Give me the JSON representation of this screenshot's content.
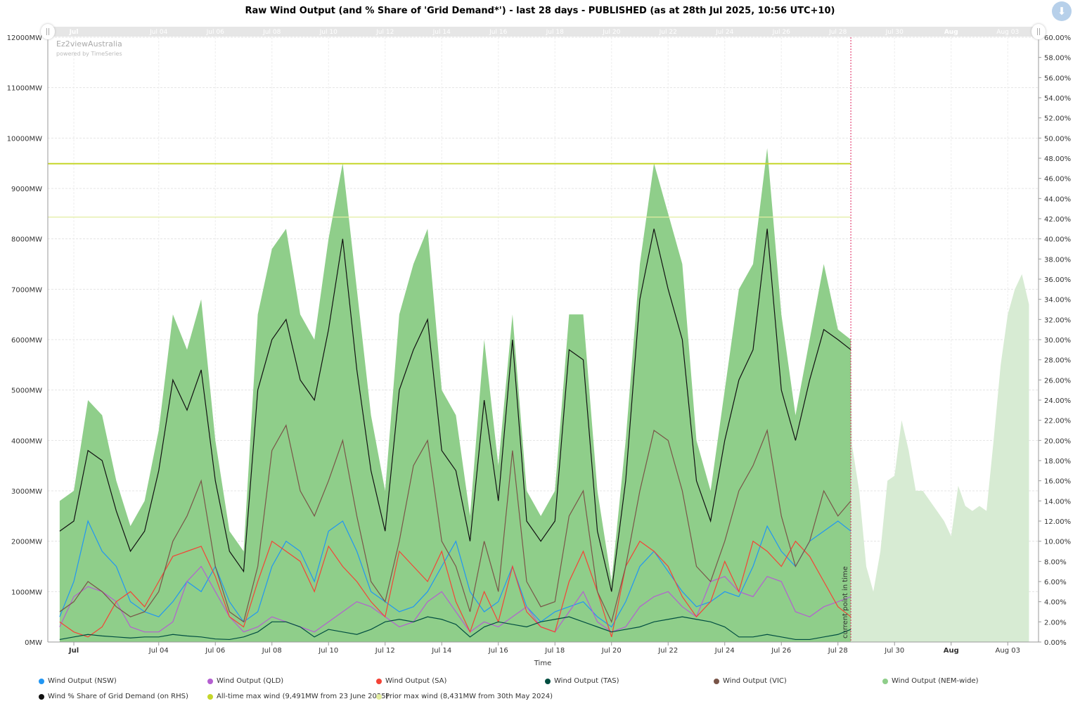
{
  "chart_data": {
    "type": "area",
    "title": "Raw Wind Output (and % Share of 'Grid Demand*') - last 28 days - PUBLISHED (as at 28th Jul 2025, 10:56 UTC+10)",
    "xlabel": "Time",
    "ylabel_left_unit": "MW",
    "ylabel_right_unit": "%",
    "ylim_left": [
      0,
      12000
    ],
    "ylim_right": [
      0,
      60
    ],
    "xlim": [
      "Jun 30 02:00",
      "Aug 04 02:00"
    ],
    "x_ticks": [
      "Jul",
      "Jul 04",
      "Jul 06",
      "Jul 08",
      "Jul 10",
      "Jul 12",
      "Jul 14",
      "Jul 16",
      "Jul 18",
      "Jul 20",
      "Jul 22",
      "Jul 24",
      "Jul 26",
      "Jul 28",
      "Jul 30",
      "Aug",
      "Aug 03"
    ],
    "x_tick_times": [
      "Jul 01 00:00",
      "Jul 04 00:00",
      "Jul 06 00:00",
      "Jul 08 00:00",
      "Jul 10 00:00",
      "Jul 12 00:00",
      "Jul 14 00:00",
      "Jul 16 00:00",
      "Jul 18 00:00",
      "Jul 20 00:00",
      "Jul 22 00:00",
      "Jul 24 00:00",
      "Jul 26 00:00",
      "Jul 28 00:00",
      "Jul 30 00:00",
      "Aug 01 00:00",
      "Aug 03 00:00"
    ],
    "grid": true,
    "legend_position": "bottom",
    "current_time": "Jul 28 10:56",
    "current_time_label": "current point in time",
    "x": [
      "Jun 30 12:00",
      "Jul 01 00:00",
      "Jul 01 12:00",
      "Jul 02 00:00",
      "Jul 02 12:00",
      "Jul 03 00:00",
      "Jul 03 12:00",
      "Jul 04 00:00",
      "Jul 04 12:00",
      "Jul 05 00:00",
      "Jul 05 12:00",
      "Jul 06 00:00",
      "Jul 06 12:00",
      "Jul 07 00:00",
      "Jul 07 12:00",
      "Jul 08 00:00",
      "Jul 08 12:00",
      "Jul 09 00:00",
      "Jul 09 12:00",
      "Jul 10 00:00",
      "Jul 10 12:00",
      "Jul 11 00:00",
      "Jul 11 12:00",
      "Jul 12 00:00",
      "Jul 12 12:00",
      "Jul 13 00:00",
      "Jul 13 12:00",
      "Jul 14 00:00",
      "Jul 14 12:00",
      "Jul 15 00:00",
      "Jul 15 12:00",
      "Jul 16 00:00",
      "Jul 16 12:00",
      "Jul 17 00:00",
      "Jul 17 12:00",
      "Jul 18 00:00",
      "Jul 18 12:00",
      "Jul 19 00:00",
      "Jul 19 12:00",
      "Jul 20 00:00",
      "Jul 20 12:00",
      "Jul 21 00:00",
      "Jul 21 12:00",
      "Jul 22 00:00",
      "Jul 22 12:00",
      "Jul 23 00:00",
      "Jul 23 12:00",
      "Jul 24 00:00",
      "Jul 24 12:00",
      "Jul 25 00:00",
      "Jul 25 12:00",
      "Jul 26 00:00",
      "Jul 26 12:00",
      "Jul 27 00:00",
      "Jul 27 12:00",
      "Jul 28 00:00",
      "Jul 28 10:56"
    ],
    "series": [
      {
        "name": "Wind Output (NEM-wide)",
        "color": "#8fce8a",
        "kind": "area",
        "axis": "left",
        "values": [
          2800,
          3000,
          4800,
          4500,
          3200,
          2300,
          2800,
          4200,
          6500,
          5800,
          6800,
          4000,
          2200,
          1800,
          6500,
          7800,
          8200,
          6500,
          6000,
          8000,
          9500,
          7000,
          4500,
          3000,
          6500,
          7500,
          8200,
          5000,
          4500,
          2500,
          6000,
          3500,
          6500,
          3000,
          2500,
          3000,
          6500,
          6500,
          3000,
          1200,
          4000,
          7500,
          9500,
          8500,
          7500,
          4000,
          3000,
          5000,
          7000,
          7500,
          9800,
          6500,
          4500,
          6000,
          7500,
          6200,
          6000
        ]
      },
      {
        "name": "Wind Output (NSW)",
        "color": "#2196f3",
        "kind": "line",
        "axis": "left",
        "values": [
          500,
          1200,
          2400,
          1800,
          1500,
          800,
          600,
          500,
          800,
          1200,
          1000,
          1500,
          800,
          400,
          600,
          1500,
          2000,
          1800,
          1200,
          2200,
          2400,
          1800,
          1000,
          800,
          600,
          700,
          1000,
          1500,
          2000,
          1000,
          600,
          800,
          1500,
          700,
          400,
          600,
          700,
          800,
          500,
          300,
          800,
          1500,
          1800,
          1400,
          1000,
          700,
          800,
          1000,
          900,
          1500,
          2300,
          1800,
          1500,
          2000,
          2200,
          2400,
          2200
        ]
      },
      {
        "name": "Wind Output (QLD)",
        "color": "#b45fd0",
        "kind": "line",
        "axis": "left",
        "values": [
          300,
          900,
          1100,
          1000,
          800,
          300,
          200,
          200,
          400,
          1200,
          1500,
          1000,
          500,
          200,
          300,
          500,
          400,
          300,
          200,
          400,
          600,
          800,
          700,
          500,
          300,
          400,
          800,
          1000,
          600,
          200,
          400,
          300,
          500,
          700,
          300,
          200,
          600,
          1000,
          400,
          200,
          300,
          700,
          900,
          1000,
          700,
          500,
          1200,
          1300,
          1000,
          900,
          1300,
          1200,
          600,
          500,
          700,
          800,
          900
        ]
      },
      {
        "name": "Wind Output (SA)",
        "color": "#f44336",
        "kind": "line",
        "axis": "left",
        "values": [
          400,
          200,
          100,
          300,
          800,
          1000,
          700,
          1200,
          1700,
          1800,
          1900,
          1300,
          500,
          300,
          1200,
          2000,
          1800,
          1600,
          1000,
          1900,
          1500,
          1200,
          800,
          500,
          1800,
          1500,
          1200,
          1800,
          800,
          200,
          1000,
          400,
          1500,
          600,
          300,
          200,
          1200,
          1800,
          1000,
          100,
          1500,
          2000,
          1800,
          1500,
          900,
          500,
          800,
          1600,
          1000,
          2000,
          1800,
          1500,
          2000,
          1700,
          1200,
          700,
          500
        ]
      },
      {
        "name": "Wind Output (TAS)",
        "color": "#004d40",
        "kind": "line",
        "axis": "left",
        "values": [
          50,
          100,
          150,
          120,
          100,
          80,
          100,
          100,
          150,
          120,
          100,
          60,
          50,
          100,
          200,
          400,
          400,
          300,
          100,
          250,
          200,
          150,
          250,
          400,
          450,
          400,
          500,
          450,
          350,
          100,
          300,
          400,
          350,
          300,
          400,
          450,
          500,
          400,
          300,
          200,
          250,
          300,
          400,
          450,
          500,
          450,
          400,
          300,
          100,
          100,
          150,
          100,
          50,
          50,
          100,
          150,
          250
        ]
      },
      {
        "name": "Wind Output (VIC)",
        "color": "#795548",
        "kind": "line",
        "axis": "left",
        "values": [
          600,
          800,
          1200,
          1000,
          700,
          500,
          600,
          1000,
          2000,
          2500,
          3200,
          1500,
          600,
          400,
          1500,
          3800,
          4300,
          3000,
          2500,
          3200,
          4000,
          2500,
          1200,
          800,
          2000,
          3500,
          4000,
          2000,
          1500,
          600,
          2000,
          1000,
          3800,
          1200,
          700,
          800,
          2500,
          3000,
          1000,
          400,
          1500,
          3000,
          4200,
          4000,
          3000,
          1500,
          1200,
          2000,
          3000,
          3500,
          4200,
          2500,
          1500,
          2000,
          3000,
          2500,
          2800
        ]
      },
      {
        "name": "Wind % Share of Grid Demand (on RHS)",
        "color": "#111111",
        "kind": "line",
        "axis": "right",
        "values": [
          11,
          12,
          19,
          18,
          13,
          9,
          11,
          17,
          26,
          23,
          27,
          16,
          9,
          7,
          25,
          30,
          32,
          26,
          24,
          31,
          40,
          27,
          17,
          11,
          25,
          29,
          32,
          19,
          17,
          10,
          24,
          14,
          30,
          12,
          10,
          12,
          29,
          28,
          11,
          5,
          16,
          34,
          41,
          35,
          30,
          16,
          12,
          20,
          26,
          29,
          41,
          25,
          20,
          26,
          31,
          30,
          29
        ]
      }
    ],
    "forecast": {
      "color": "#d7ebd3",
      "x": [
        "Jul 28 10:56",
        "Jul 28 12:00",
        "Jul 28 18:00",
        "Jul 29 00:00",
        "Jul 29 06:00",
        "Jul 29 12:00",
        "Jul 29 18:00",
        "Jul 30 00:00",
        "Jul 30 06:00",
        "Jul 30 12:00",
        "Jul 30 18:00",
        "Jul 31 00:00",
        "Jul 31 06:00",
        "Jul 31 12:00",
        "Jul 31 18:00",
        "Aug 01 00:00",
        "Aug 01 06:00",
        "Aug 01 12:00",
        "Aug 01 18:00",
        "Aug 02 00:00",
        "Aug 02 06:00",
        "Aug 02 12:00",
        "Aug 02 18:00",
        "Aug 03 00:00",
        "Aug 03 06:00",
        "Aug 03 12:00",
        "Aug 03 18:00"
      ],
      "values": [
        6000,
        3900,
        3000,
        1500,
        1000,
        1800,
        3200,
        3300,
        4400,
        3800,
        3000,
        3000,
        2800,
        2600,
        2400,
        2100,
        3100,
        2700,
        2600,
        2700,
        2600,
        4000,
        5500,
        6500,
        7000,
        7300,
        6700
      ]
    },
    "reference_lines": [
      {
        "name": "All-time max wind (9,491MW from 23 June 2025)",
        "value": 9491,
        "color": "#c5d62a"
      },
      {
        "name": "Prior max wind (8,431MW from 30th May 2024)",
        "value": 8431,
        "color": "#e3eea0"
      }
    ]
  },
  "branding": {
    "name": "Ez2viewAustralia",
    "sub": "powered by TimeSeries"
  },
  "legend": [
    {
      "label": "Wind Output (NSW)",
      "color": "#2196f3"
    },
    {
      "label": "Wind Output (QLD)",
      "color": "#b45fd0"
    },
    {
      "label": "Wind Output (SA)",
      "color": "#f44336"
    },
    {
      "label": "Wind Output (TAS)",
      "color": "#004d40"
    },
    {
      "label": "Wind Output (VIC)",
      "color": "#795548"
    },
    {
      "label": "Wind Output (NEM-wide)",
      "color": "#8fce8a"
    },
    {
      "label": "Wind % Share of Grid Demand (on RHS)",
      "color": "#111111"
    },
    {
      "label": "All-time max wind (9,491MW from 23 June 2025)",
      "color": "#c5d62a"
    },
    {
      "label": "Prior max wind (8,431MW from 30th May 2024)",
      "color": "#e3eea0"
    }
  ],
  "icons": {
    "download": "download-icon",
    "handle": "scroll-handle-icon"
  }
}
